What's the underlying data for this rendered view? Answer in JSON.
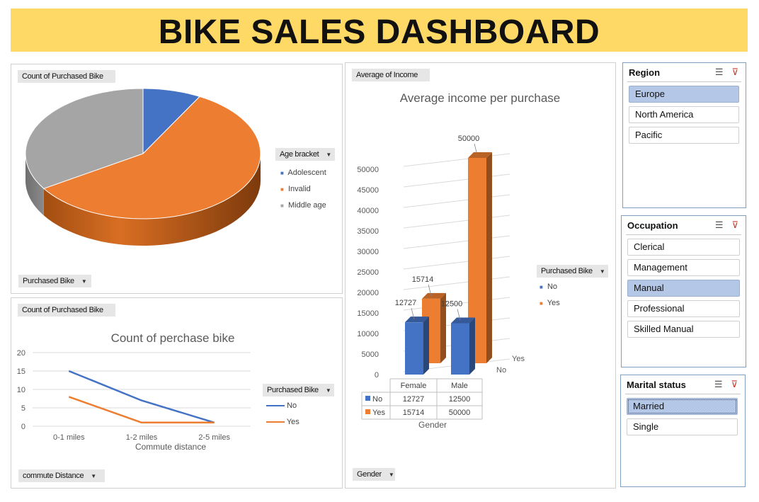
{
  "dashboard": {
    "title": "BIKE SALES DASHBOARD"
  },
  "pie_panel": {
    "value_field": "Count of Purchased Bike",
    "filter_field": "Purchased Bike",
    "legend_title": "Age bracket"
  },
  "line_panel": {
    "value_field": "Count of Purchased Bike",
    "axis_field": "commute  Distance",
    "legend_title": "Purchased Bike"
  },
  "bar_panel": {
    "value_field": "Average of Income",
    "axis_field": "Gender",
    "legend_title": "Purchased Bike"
  },
  "slicers": {
    "region": {
      "title": "Region",
      "items": [
        "Europe",
        "North America",
        "Pacific"
      ],
      "selected": [
        "Europe"
      ]
    },
    "occupation": {
      "title": "Occupation",
      "items": [
        "Clerical",
        "Management",
        "Manual",
        "Professional",
        "Skilled Manual"
      ],
      "selected": [
        "Manual"
      ]
    },
    "marital": {
      "title": "Marital status",
      "items": [
        "Married",
        "Single"
      ],
      "selected": [
        "Married"
      ]
    }
  },
  "colors": {
    "blue": "#4472C4",
    "orange": "#ED7D31",
    "gray": "#A5A5A5",
    "banner": "#FFD966",
    "slicer_selected": "#B4C7E7"
  },
  "icons": {
    "multiselect": "multi-select-icon",
    "clearfilter": "clear-filter-icon",
    "dropdown": "dropdown-arrow-icon"
  },
  "chart_data": [
    {
      "type": "pie",
      "series": [
        {
          "name": "Count of Purchased Bike",
          "labels": [
            "Adolescent",
            "Invalid",
            "Middle age"
          ],
          "values": [
            8,
            58,
            34
          ]
        }
      ],
      "legend": [
        "Adolescent",
        "Invalid",
        "Middle age"
      ],
      "legend_title": "Age bracket",
      "legend_position": "right"
    },
    {
      "type": "line",
      "title": "Count of perchase bike",
      "categories": [
        "0-1 miles",
        "1-2 miles",
        "2-5 miles"
      ],
      "series": [
        {
          "name": "No",
          "values": [
            15,
            7,
            1
          ],
          "color": "#4472C4"
        },
        {
          "name": "Yes",
          "values": [
            8,
            1,
            1
          ],
          "color": "#ED7D31"
        }
      ],
      "xlabel": "Commute distance",
      "ylim": [
        0,
        20
      ],
      "yticks": [
        0,
        5,
        10,
        15,
        20
      ],
      "grid": true,
      "legend_title": "Purchased Bike",
      "legend_position": "right"
    },
    {
      "type": "bar",
      "title": "Average income per purchase",
      "categories": [
        "Female",
        "Male"
      ],
      "series": [
        {
          "name": "No",
          "values": [
            12727,
            12500
          ],
          "color": "#4472C4"
        },
        {
          "name": "Yes",
          "values": [
            15714,
            50000
          ],
          "color": "#ED7D31"
        }
      ],
      "depth_labels": [
        "No",
        "Yes"
      ],
      "xlabel": "Gender",
      "ylim": [
        0,
        50000
      ],
      "yticks": [
        0,
        5000,
        10000,
        15000,
        20000,
        25000,
        30000,
        35000,
        40000,
        45000,
        50000
      ],
      "data_table": true,
      "legend_title": "Purchased Bike",
      "legend_position": "right"
    }
  ]
}
